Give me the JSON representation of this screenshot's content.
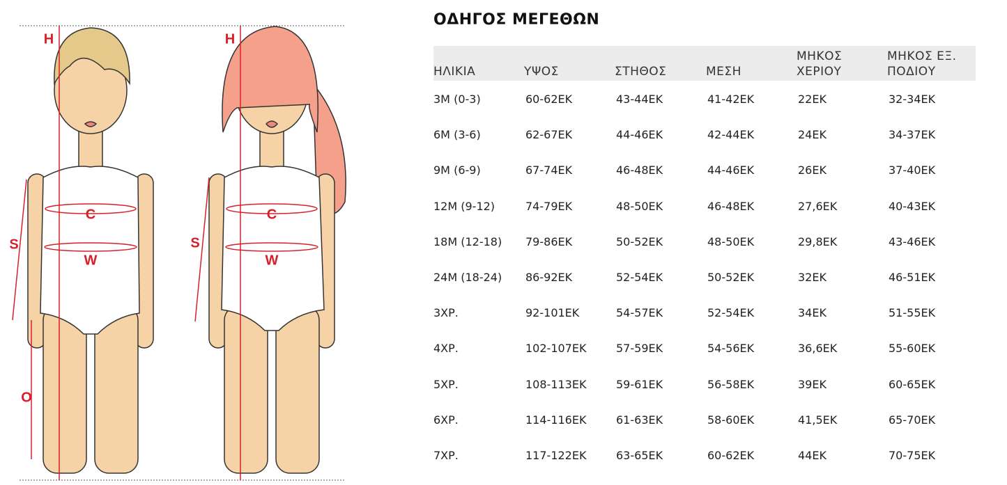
{
  "illustration": {
    "boy_labels": [
      "H",
      "C",
      "W",
      "S",
      "O"
    ],
    "girl_labels": [
      "H",
      "C",
      "W",
      "S"
    ]
  },
  "table": {
    "title": "ΟΔΗΓΟΣ ΜΕΓΕΘΩΝ",
    "headers": [
      "ΗΛΙΚΙΑ",
      "ΥΨΟΣ",
      "ΣΤΗΘΟΣ",
      "ΜΕΣΗ",
      "ΜΗΚΟΣ ΧΕΡΙΟΥ",
      "ΜΗΚΟΣ ΕΞ. ΠΟΔΙΟΥ"
    ],
    "rows": [
      [
        "3M (0-3)",
        "60-62ΕΚ",
        "43-44ΕΚ",
        "41-42ΕΚ",
        "22ΕΚ",
        "32-34ΕΚ"
      ],
      [
        "6M (3-6)",
        "62-67ΕΚ",
        "44-46ΕΚ",
        "42-44ΕΚ",
        "24ΕΚ",
        "34-37ΕΚ"
      ],
      [
        "9M (6-9)",
        "67-74ΕΚ",
        "46-48ΕΚ",
        "44-46ΕΚ",
        "26ΕΚ",
        "37-40ΕΚ"
      ],
      [
        "12M (9-12)",
        "74-79ΕΚ",
        "48-50ΕΚ",
        "46-48ΕΚ",
        "27,6ΕΚ",
        "40-43ΕΚ"
      ],
      [
        "18M (12-18)",
        "79-86ΕΚ",
        "50-52ΕΚ",
        "48-50ΕΚ",
        "29,8ΕΚ",
        "43-46ΕΚ"
      ],
      [
        "24M (18-24)",
        "86-92ΕΚ",
        "52-54ΕΚ",
        "50-52ΕΚ",
        "32ΕΚ",
        "46-51ΕΚ"
      ],
      [
        "3ΧΡ.",
        "92-101ΕΚ",
        "54-57ΕΚ",
        "52-54ΕΚ",
        "34ΕΚ",
        "51-55ΕΚ"
      ],
      [
        "4ΧΡ.",
        "102-107ΕΚ",
        "57-59ΕΚ",
        "54-56ΕΚ",
        "36,6ΕΚ",
        "55-60ΕΚ"
      ],
      [
        "5ΧΡ.",
        "108-113ΕΚ",
        "59-61ΕΚ",
        "56-58ΕΚ",
        "39ΕΚ",
        "60-65ΕΚ"
      ],
      [
        "6ΧΡ.",
        "114-116ΕΚ",
        "61-63ΕΚ",
        "58-60ΕΚ",
        "41,5ΕΚ",
        "65-70ΕΚ"
      ],
      [
        "7ΧΡ.",
        "117-122ΕΚ",
        "63-65ΕΚ",
        "60-62ΕΚ",
        "44ΕΚ",
        "70-75ΕΚ"
      ]
    ]
  }
}
